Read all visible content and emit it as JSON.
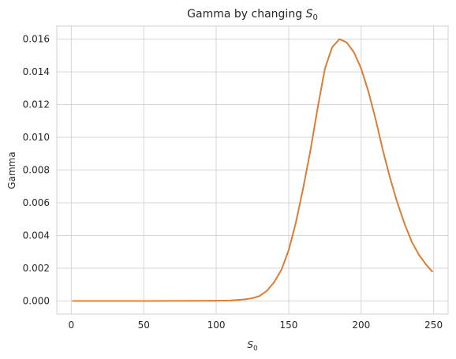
{
  "chart_data": {
    "type": "line",
    "title": "Gamma by changing S0",
    "title_main": "Gamma by changing ",
    "title_var": "S",
    "title_sub": "0",
    "xlabel_var": "S",
    "xlabel_sub": "0",
    "ylabel": "Gamma",
    "xlim": [
      -10,
      260
    ],
    "ylim": [
      -0.0008,
      0.0168
    ],
    "xticks": [
      0,
      50,
      100,
      150,
      200,
      250
    ],
    "yticks": [
      0.0,
      0.002,
      0.004,
      0.006,
      0.008,
      0.01,
      0.012,
      0.014,
      0.016
    ],
    "ytick_labels": [
      "0.000",
      "0.002",
      "0.004",
      "0.006",
      "0.008",
      "0.010",
      "0.012",
      "0.014",
      "0.016"
    ],
    "grid": true,
    "series": [
      {
        "color": "#1f77b4",
        "x": [
          1,
          50,
          100,
          110,
          115,
          120,
          125,
          130,
          135,
          140,
          145,
          150,
          155,
          160,
          165,
          170,
          175,
          180,
          185,
          190,
          195,
          200,
          205,
          210,
          215,
          220,
          225,
          230,
          235,
          240,
          245,
          249
        ],
        "y": [
          0,
          0,
          1e-05,
          3e-05,
          6e-05,
          0.0001,
          0.00017,
          0.00031,
          0.00062,
          0.00115,
          0.0019,
          0.0031,
          0.0048,
          0.0069,
          0.0092,
          0.0118,
          0.0142,
          0.0155,
          0.016,
          0.0158,
          0.0152,
          0.0142,
          0.0128,
          0.0111,
          0.0092,
          0.0075,
          0.006,
          0.0047,
          0.0036,
          0.0028,
          0.0022,
          0.0018
        ]
      },
      {
        "color": "#e87c27",
        "x": [
          1,
          50,
          100,
          110,
          115,
          120,
          125,
          130,
          135,
          140,
          145,
          150,
          155,
          160,
          165,
          170,
          175,
          180,
          185,
          190,
          195,
          200,
          205,
          210,
          215,
          220,
          225,
          230,
          235,
          240,
          245,
          249
        ],
        "y": [
          0,
          0,
          1e-05,
          3e-05,
          6e-05,
          0.0001,
          0.00017,
          0.00031,
          0.00062,
          0.00115,
          0.0019,
          0.0031,
          0.0048,
          0.0069,
          0.0092,
          0.0118,
          0.0142,
          0.0155,
          0.016,
          0.0158,
          0.0152,
          0.0142,
          0.0128,
          0.0111,
          0.0092,
          0.0075,
          0.006,
          0.0047,
          0.0036,
          0.0028,
          0.0022,
          0.0018
        ]
      }
    ]
  }
}
